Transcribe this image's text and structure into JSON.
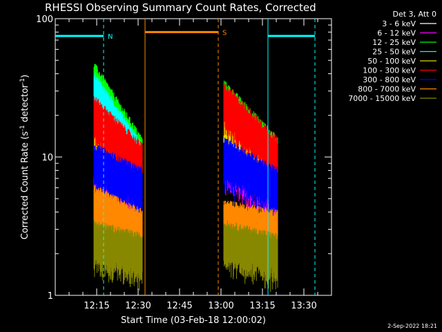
{
  "chart_data": {
    "type": "line",
    "title": "RHESSI Observing Summary Count Rates, Corrected",
    "xlabel": "Start Time (03-Feb-18 12:00:02)",
    "ylabel_main": "Corrected Count Rate (s",
    "ylabel_sup1": "-1",
    "ylabel_mid": " detector",
    "ylabel_sup2": "-1",
    "ylabel_end": ")",
    "y_scale": "log",
    "ylim": [
      1,
      100
    ],
    "y_ticks": [
      {
        "value": 1,
        "label": "1"
      },
      {
        "value": 10,
        "label": "10"
      },
      {
        "value": 100,
        "label": "100"
      }
    ],
    "xlim_minutes": [
      0,
      100
    ],
    "x_ticks": [
      {
        "minute": 15,
        "label": "12:15"
      },
      {
        "minute": 30,
        "label": "12:30"
      },
      {
        "minute": 45,
        "label": "12:45"
      },
      {
        "minute": 60,
        "label": "13:00"
      },
      {
        "minute": 75,
        "label": "13:15"
      },
      {
        "minute": 90,
        "label": "13:30"
      }
    ],
    "legend": {
      "header": "Det 3, Att 0",
      "placement": "right"
    },
    "series": [
      {
        "name": "3 - 6 keV",
        "color": "#ffffff",
        "seg1": [
          11,
          8
        ],
        "seg2": [
          14,
          8
        ]
      },
      {
        "name": "6 - 12 keV",
        "color": "#ff00ff",
        "seg1": [
          8,
          5
        ],
        "seg2": [
          10,
          5.5
        ]
      },
      {
        "name": "12 - 25 keV",
        "color": "#00ff00",
        "seg1": [
          35,
          10
        ],
        "seg2": [
          26,
          10
        ]
      },
      {
        "name": "25 - 50 keV",
        "color": "#00ffff",
        "seg1": [
          30,
          9
        ],
        "seg2": [
          22,
          9
        ]
      },
      {
        "name": "50 - 100 keV",
        "color": "#dddd00",
        "seg1": [
          15,
          7
        ],
        "seg2": [
          18,
          8
        ]
      },
      {
        "name": "100 - 300 keV",
        "color": "#ff0000",
        "seg1": [
          20,
          9
        ],
        "seg2": [
          25,
          10
        ]
      },
      {
        "name": "300 - 800 keV",
        "color": "#0000ff",
        "seg1": [
          9,
          6
        ],
        "seg2": [
          10,
          6
        ]
      },
      {
        "name": "800 - 7000 keV",
        "color": "#ff8800",
        "seg1": [
          4.5,
          3
        ],
        "seg2": [
          3.5,
          3
        ]
      },
      {
        "name": "7000 - 15000 keV",
        "color": "#888800",
        "seg1": [
          2.5,
          2
        ],
        "seg2": [
          2.5,
          2
        ]
      }
    ],
    "data_segments_minutes": [
      [
        14,
        31.5
      ],
      [
        61,
        80.5
      ]
    ],
    "flags": [
      {
        "label": "N",
        "color": "#00ffff",
        "y": 75,
        "from": 0,
        "to": 17.5
      },
      {
        "label": "",
        "color": "#00ffff",
        "y": 75,
        "from": 77,
        "to": 94
      },
      {
        "label": "S",
        "color": "#ff8800",
        "y": 80,
        "from": 32.5,
        "to": 59
      }
    ],
    "vlines": [
      {
        "minute": 17.5,
        "color": "#00ffff",
        "style": "dashed"
      },
      {
        "minute": 77,
        "color": "#00ffff",
        "style": "solid"
      },
      {
        "minute": 94,
        "color": "#00ffff",
        "style": "dashed"
      },
      {
        "minute": 32.5,
        "color": "#ff8800",
        "style": "solid"
      },
      {
        "minute": 59,
        "color": "#ff8800",
        "style": "dashed"
      }
    ]
  },
  "footer": {
    "date_stamp": "2-Sep-2022 18:21"
  },
  "colors": {
    "background": "#000000",
    "axis": "#ffffff"
  }
}
